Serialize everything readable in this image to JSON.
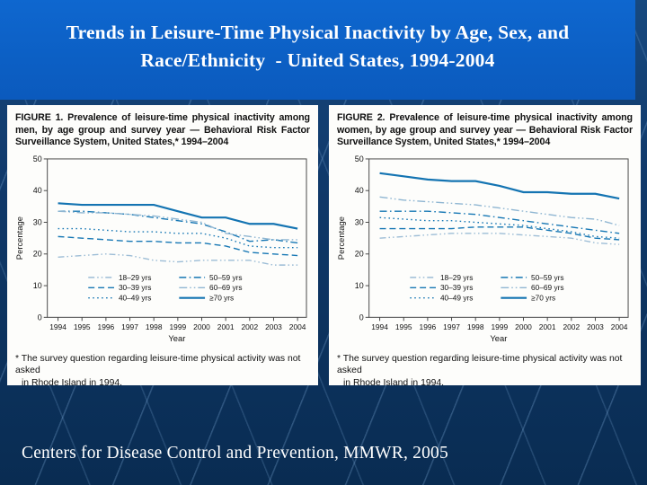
{
  "slide": {
    "title_line1": "Trends in Leisure-Time Physical Inactivity by Age, Sex, and",
    "title_line2": "Race/Ethnicity  - United States, 1994-2004",
    "footer": "Centers for Disease Control and Prevention, MMWR, 2005"
  },
  "colors": {
    "banner_blue": "#0d62c8",
    "background_navy": "#0f3a6a",
    "panel_white": "#fdfdfb",
    "line_strong_blue": "#1677b4",
    "line_light_blue": "#9dbdd6",
    "axis_gray": "#4a4a4a"
  },
  "figures": [
    {
      "footnote_line1": "* The survey question regarding leisure-time physical activity was not asked",
      "footnote_line2": "in Rhode Island in 1994."
    },
    {
      "footnote_line1": "* The survey question regarding leisure-time physical activity was not asked",
      "footnote_line2": "in Rhode Island in 1994."
    }
  ],
  "chart_data": [
    {
      "type": "line",
      "title": "FIGURE 1. Prevalence of leisure-time physical inactivity among men, by age group and survey year — Behavioral Risk Factor Surveillance System, United States,* 1994–2004",
      "xlabel": "Year",
      "ylabel": "Percentage",
      "ylim": [
        0,
        50
      ],
      "yticks": [
        0,
        10,
        20,
        30,
        40,
        50
      ],
      "grid": false,
      "legend_position": "inside-bottom",
      "x": [
        1994,
        1995,
        1996,
        1997,
        1998,
        1999,
        2000,
        2001,
        2002,
        2003,
        2004
      ],
      "series": [
        {
          "name": "18–29 yrs",
          "dash": "dash-dot-dot",
          "color": "#9dbdd6",
          "values": [
            19,
            19.5,
            20,
            19.5,
            18,
            17.5,
            18,
            18,
            18,
            16.5,
            16.5
          ]
        },
        {
          "name": "30–39 yrs",
          "dash": "dash",
          "color": "#1677b4",
          "values": [
            25.5,
            25,
            24.5,
            24,
            24,
            23.5,
            23.5,
            22.5,
            20.5,
            20,
            19.5
          ]
        },
        {
          "name": "40–49 yrs",
          "dash": "dot",
          "color": "#1677b4",
          "values": [
            28,
            28,
            27.5,
            27,
            27,
            26.5,
            26.5,
            25,
            22.5,
            22,
            22
          ]
        },
        {
          "name": "50–59 yrs",
          "dash": "dash-dot",
          "color": "#1677b4",
          "values": [
            33.5,
            33.5,
            33,
            32.5,
            31.5,
            30.5,
            29.5,
            27,
            24,
            24.5,
            23.5
          ]
        },
        {
          "name": "60–69 yrs",
          "dash": "dash-dot-dot-2",
          "color": "#8fb6d2",
          "values": [
            33.5,
            33,
            33,
            32.5,
            32,
            31,
            30,
            26.5,
            25.5,
            24.5,
            24.5
          ]
        },
        {
          "name": "≥70 yrs",
          "dash": "solid",
          "width": 2.2,
          "color": "#1474b2",
          "values": [
            36,
            35.5,
            35.5,
            35.5,
            35.5,
            33.5,
            31.5,
            31.5,
            29.5,
            29.5,
            28
          ]
        }
      ]
    },
    {
      "type": "line",
      "title": "FIGURE 2. Prevalence of leisure-time physical inactivity among women, by age group and survey year — Behavioral Risk Factor Surveillance System, United States,* 1994–2004",
      "xlabel": "Year",
      "ylabel": "Percentage",
      "ylim": [
        0,
        50
      ],
      "yticks": [
        0,
        10,
        20,
        30,
        40,
        50
      ],
      "grid": false,
      "legend_position": "inside-bottom",
      "x": [
        1994,
        1995,
        1996,
        1997,
        1998,
        1999,
        2000,
        2001,
        2002,
        2003,
        2004
      ],
      "series": [
        {
          "name": "18–29 yrs",
          "dash": "dash-dot-dot",
          "color": "#9dbdd6",
          "values": [
            25,
            25.5,
            26,
            26.5,
            26.5,
            26.5,
            26,
            25.5,
            25,
            23.5,
            23
          ]
        },
        {
          "name": "30–39 yrs",
          "dash": "dash",
          "color": "#1677b4",
          "values": [
            28,
            28,
            28,
            28,
            28.5,
            28.5,
            28.5,
            27.5,
            26.5,
            25,
            24.5
          ]
        },
        {
          "name": "40–49 yrs",
          "dash": "dot",
          "color": "#1677b4",
          "values": [
            31.5,
            31,
            30.5,
            30.5,
            30,
            29.5,
            29,
            28,
            27,
            25.5,
            25
          ]
        },
        {
          "name": "50–59 yrs",
          "dash": "dash-dot",
          "color": "#1677b4",
          "values": [
            33.5,
            33.5,
            33.5,
            33,
            32.5,
            31.5,
            30.5,
            29.5,
            28.5,
            27.5,
            26.5
          ]
        },
        {
          "name": "60–69 yrs",
          "dash": "dash-dot-dot-2",
          "color": "#8fb6d2",
          "values": [
            38,
            37,
            36.5,
            36,
            35.5,
            34.5,
            33.5,
            32.5,
            31.5,
            31,
            29
          ]
        },
        {
          "name": "≥70 yrs",
          "dash": "solid",
          "width": 2.2,
          "color": "#1474b2",
          "values": [
            45.5,
            44.5,
            43.5,
            43,
            43,
            41.5,
            39.5,
            39.5,
            39,
            39,
            37.5
          ]
        }
      ]
    }
  ]
}
